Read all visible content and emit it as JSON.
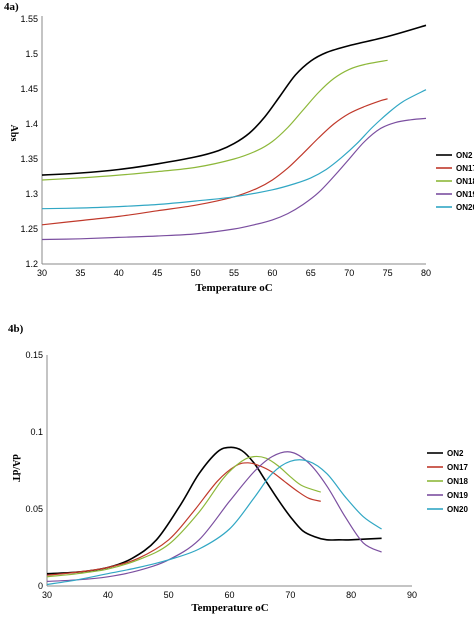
{
  "chart_data": [
    {
      "label": "4a)",
      "type": "line",
      "xlabel": "Temperature oC",
      "ylabel": "Abs",
      "xlim": [
        30,
        80
      ],
      "ylim": [
        1.2,
        1.55
      ],
      "xticks": [
        30,
        35,
        40,
        45,
        50,
        55,
        60,
        65,
        70,
        75,
        80
      ],
      "yticks": [
        1.2,
        1.25,
        1.3,
        1.35,
        1.4,
        1.45,
        1.5,
        1.55
      ],
      "ytick_labels": [
        "1.2",
        "1.25",
        "1.3",
        "1.35",
        "1.4",
        "1.45",
        "1.5",
        "1.55"
      ],
      "grid": false,
      "legend": "right",
      "series": [
        {
          "name": "ON2",
          "color": "#000000",
          "x": [
            30,
            35,
            40,
            45,
            50,
            53,
            55,
            57,
            59,
            61,
            63,
            65,
            67,
            70,
            75,
            80
          ],
          "y": [
            1.327,
            1.33,
            1.335,
            1.343,
            1.353,
            1.362,
            1.372,
            1.387,
            1.41,
            1.44,
            1.47,
            1.49,
            1.502,
            1.512,
            1.525,
            1.541
          ]
        },
        {
          "name": "ON17",
          "color": "#c0392b",
          "x": [
            30,
            35,
            40,
            45,
            50,
            55,
            58,
            60,
            62,
            64,
            66,
            68,
            70,
            72,
            74,
            75
          ],
          "y": [
            1.256,
            1.262,
            1.268,
            1.276,
            1.284,
            1.296,
            1.308,
            1.32,
            1.337,
            1.358,
            1.38,
            1.4,
            1.415,
            1.425,
            1.433,
            1.436
          ]
        },
        {
          "name": "ON18",
          "color": "#8db83a",
          "x": [
            30,
            35,
            40,
            45,
            50,
            55,
            58,
            60,
            62,
            64,
            66,
            68,
            70,
            72,
            75
          ],
          "y": [
            1.32,
            1.323,
            1.327,
            1.332,
            1.338,
            1.35,
            1.362,
            1.375,
            1.395,
            1.42,
            1.445,
            1.465,
            1.478,
            1.485,
            1.491
          ]
        },
        {
          "name": "ON19",
          "color": "#7b4fa0",
          "x": [
            30,
            35,
            40,
            45,
            50,
            55,
            58,
            60,
            62,
            64,
            66,
            68,
            70,
            72,
            74,
            76,
            78,
            80
          ],
          "y": [
            1.235,
            1.236,
            1.238,
            1.24,
            1.243,
            1.25,
            1.257,
            1.263,
            1.272,
            1.285,
            1.302,
            1.325,
            1.35,
            1.375,
            1.393,
            1.402,
            1.406,
            1.408
          ]
        },
        {
          "name": "ON20",
          "color": "#31a7c4",
          "x": [
            30,
            35,
            40,
            45,
            50,
            55,
            60,
            63,
            65,
            67,
            69,
            71,
            73,
            75,
            77,
            80
          ],
          "y": [
            1.279,
            1.28,
            1.282,
            1.285,
            1.29,
            1.296,
            1.306,
            1.315,
            1.323,
            1.335,
            1.352,
            1.372,
            1.395,
            1.415,
            1.432,
            1.449
          ]
        }
      ]
    },
    {
      "label": "4b)",
      "type": "line",
      "xlabel": "Temperature oC",
      "ylabel": "dA/dT",
      "xlim": [
        30,
        90
      ],
      "ylim": [
        0,
        0.15
      ],
      "xticks": [
        30,
        40,
        50,
        60,
        70,
        80,
        90
      ],
      "yticks": [
        0,
        0.05,
        0.1,
        0.15
      ],
      "ytick_labels": [
        "0",
        "0.05",
        "0.1",
        "0.15"
      ],
      "grid": false,
      "legend": "right",
      "series": [
        {
          "name": "ON2",
          "color": "#000000",
          "x": [
            30,
            35,
            40,
            44,
            48,
            52,
            55,
            58,
            60,
            62,
            64,
            66,
            68,
            70,
            72,
            74,
            76,
            78,
            80,
            85
          ],
          "y": [
            0.008,
            0.009,
            0.012,
            0.018,
            0.03,
            0.053,
            0.073,
            0.087,
            0.09,
            0.088,
            0.08,
            0.068,
            0.056,
            0.045,
            0.036,
            0.032,
            0.03,
            0.03,
            0.03,
            0.031
          ]
        },
        {
          "name": "ON17",
          "color": "#c0392b",
          "x": [
            30,
            35,
            40,
            45,
            50,
            54,
            58,
            61,
            63,
            65,
            67,
            69,
            71,
            73,
            75
          ],
          "y": [
            0.007,
            0.009,
            0.012,
            0.018,
            0.03,
            0.048,
            0.068,
            0.078,
            0.08,
            0.078,
            0.074,
            0.068,
            0.062,
            0.057,
            0.055
          ]
        },
        {
          "name": "ON18",
          "color": "#8db83a",
          "x": [
            30,
            35,
            40,
            45,
            50,
            55,
            59,
            62,
            64,
            66,
            68,
            70,
            72,
            75
          ],
          "y": [
            0.006,
            0.008,
            0.011,
            0.017,
            0.027,
            0.048,
            0.07,
            0.081,
            0.084,
            0.083,
            0.078,
            0.071,
            0.065,
            0.061
          ]
        },
        {
          "name": "ON19",
          "color": "#7b4fa0",
          "x": [
            30,
            35,
            40,
            45,
            50,
            55,
            60,
            64,
            67,
            70,
            73,
            76,
            79,
            82,
            85
          ],
          "y": [
            0.003,
            0.004,
            0.006,
            0.01,
            0.017,
            0.03,
            0.055,
            0.074,
            0.084,
            0.087,
            0.08,
            0.065,
            0.045,
            0.028,
            0.022
          ]
        },
        {
          "name": "ON20",
          "color": "#31a7c4",
          "x": [
            30,
            35,
            40,
            45,
            50,
            55,
            60,
            64,
            67,
            70,
            73,
            76,
            79,
            82,
            85
          ],
          "y": [
            0.001,
            0.004,
            0.008,
            0.012,
            0.017,
            0.024,
            0.037,
            0.057,
            0.073,
            0.081,
            0.081,
            0.073,
            0.058,
            0.045,
            0.037
          ]
        }
      ]
    }
  ]
}
